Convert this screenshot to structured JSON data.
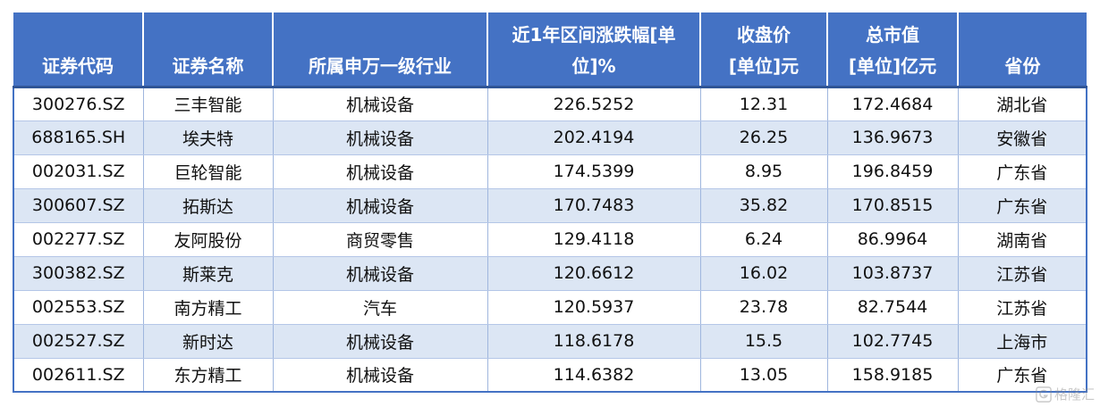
{
  "table": {
    "headers": [
      {
        "lines": [
          "证券代码"
        ]
      },
      {
        "lines": [
          "证券名称"
        ]
      },
      {
        "lines": [
          "所属申万一级行业"
        ]
      },
      {
        "lines": [
          "近1年区间涨跌幅[单",
          "位]%"
        ]
      },
      {
        "lines": [
          "收盘价",
          "[单位]元"
        ]
      },
      {
        "lines": [
          "总市值",
          "[单位]亿元"
        ]
      },
      {
        "lines": [
          "省份"
        ]
      }
    ],
    "rows": [
      [
        "300276.SZ",
        "三丰智能",
        "机械设备",
        "226.5252",
        "12.31",
        "172.4684",
        "湖北省"
      ],
      [
        "688165.SH",
        "埃夫特",
        "机械设备",
        "202.4194",
        "26.25",
        "136.9673",
        "安徽省"
      ],
      [
        "002031.SZ",
        "巨轮智能",
        "机械设备",
        "174.5399",
        "8.95",
        "196.8459",
        "广东省"
      ],
      [
        "300607.SZ",
        "拓斯达",
        "机械设备",
        "170.7483",
        "35.82",
        "170.8515",
        "广东省"
      ],
      [
        "002277.SZ",
        "友阿股份",
        "商贸零售",
        "129.4118",
        "6.24",
        "86.9964",
        "湖南省"
      ],
      [
        "300382.SZ",
        "斯莱克",
        "机械设备",
        "120.6612",
        "16.02",
        "103.8737",
        "江苏省"
      ],
      [
        "002553.SZ",
        "南方精工",
        "汽车",
        "120.5937",
        "23.78",
        "82.7544",
        "江苏省"
      ],
      [
        "002527.SZ",
        "新时达",
        "机械设备",
        "118.6178",
        "15.5",
        "102.7745",
        "上海市"
      ],
      [
        "002611.SZ",
        "东方精工",
        "机械设备",
        "114.6382",
        "13.05",
        "158.9185",
        "广东省"
      ]
    ]
  },
  "watermark": {
    "text": "格隆汇",
    "icon": "gelonghui-logo-icon"
  },
  "colors": {
    "header_bg": "#4472c4",
    "header_text": "#ffffff",
    "band_row": "#dce6f4",
    "border": "#4472c4"
  }
}
